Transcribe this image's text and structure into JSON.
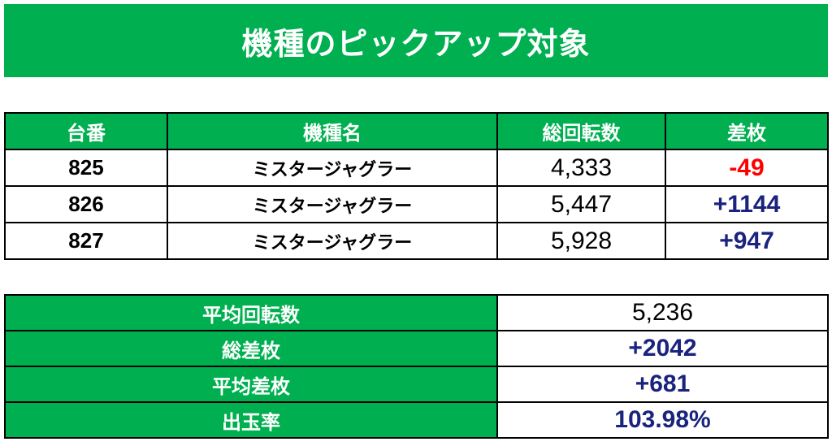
{
  "title": "機種のピックアップ対象",
  "colors": {
    "header_green": "#00b050",
    "negative": "#ff0000",
    "positive": "#1a237e"
  },
  "machine_table": {
    "headers": [
      "台番",
      "機種名",
      "総回転数",
      "差枚"
    ],
    "rows": [
      {
        "number": "825",
        "name": "ミスタージャグラー",
        "spins": "4,333",
        "diff": "-49"
      },
      {
        "number": "826",
        "name": "ミスタージャグラー",
        "spins": "5,447",
        "diff": "+1144"
      },
      {
        "number": "827",
        "name": "ミスタージャグラー",
        "spins": "5,928",
        "diff": "+947"
      }
    ]
  },
  "summary_table": {
    "rows": [
      {
        "label": "平均回転数",
        "value": "5,236"
      },
      {
        "label": "総差枚",
        "value": "+2042"
      },
      {
        "label": "平均差枚",
        "value": "+681"
      },
      {
        "label": "出玉率",
        "value": "103.98%"
      }
    ]
  }
}
